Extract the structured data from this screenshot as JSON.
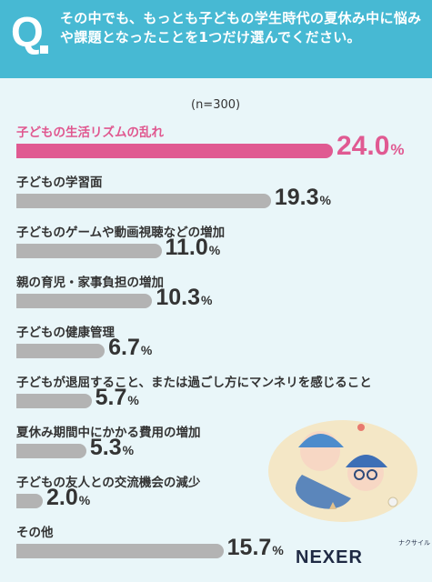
{
  "header": {
    "q_mark": "Q",
    "question": "その中でも、もっとも子どもの学生時代の夏休み中に悩みや課題となったことを1つだけ選んでください。"
  },
  "note": "(n=300)",
  "chart_data": {
    "type": "bar",
    "orientation": "horizontal",
    "categories": [
      "子どもの生活リズムの乱れ",
      "子どもの学習面",
      "子どものゲームや動画視聴などの増加",
      "親の育児・家事負担の増加",
      "子どもの健康管理",
      "子どもが退屈すること、または過ごし方にマンネリを感じること",
      "夏休み期間中にかかる費用の増加",
      "子どもの友人との交流機会の減少",
      "その他"
    ],
    "values": [
      24.0,
      19.3,
      11.0,
      10.3,
      6.7,
      5.7,
      5.3,
      2.0,
      15.7
    ],
    "value_labels": [
      "24.0",
      "19.3",
      "11.0",
      "10.3",
      "6.7",
      "5.7",
      "5.3",
      "2.0",
      "15.7"
    ],
    "unit": "%",
    "highlight_index": 0,
    "colors": {
      "highlight": "#e05a92",
      "default": "#b3b3b3"
    }
  },
  "brand": {
    "name": "NEXER",
    "kana": "ナクサイル"
  },
  "colors": {
    "header": "#47b9d3",
    "background": "#e9f6f9"
  }
}
